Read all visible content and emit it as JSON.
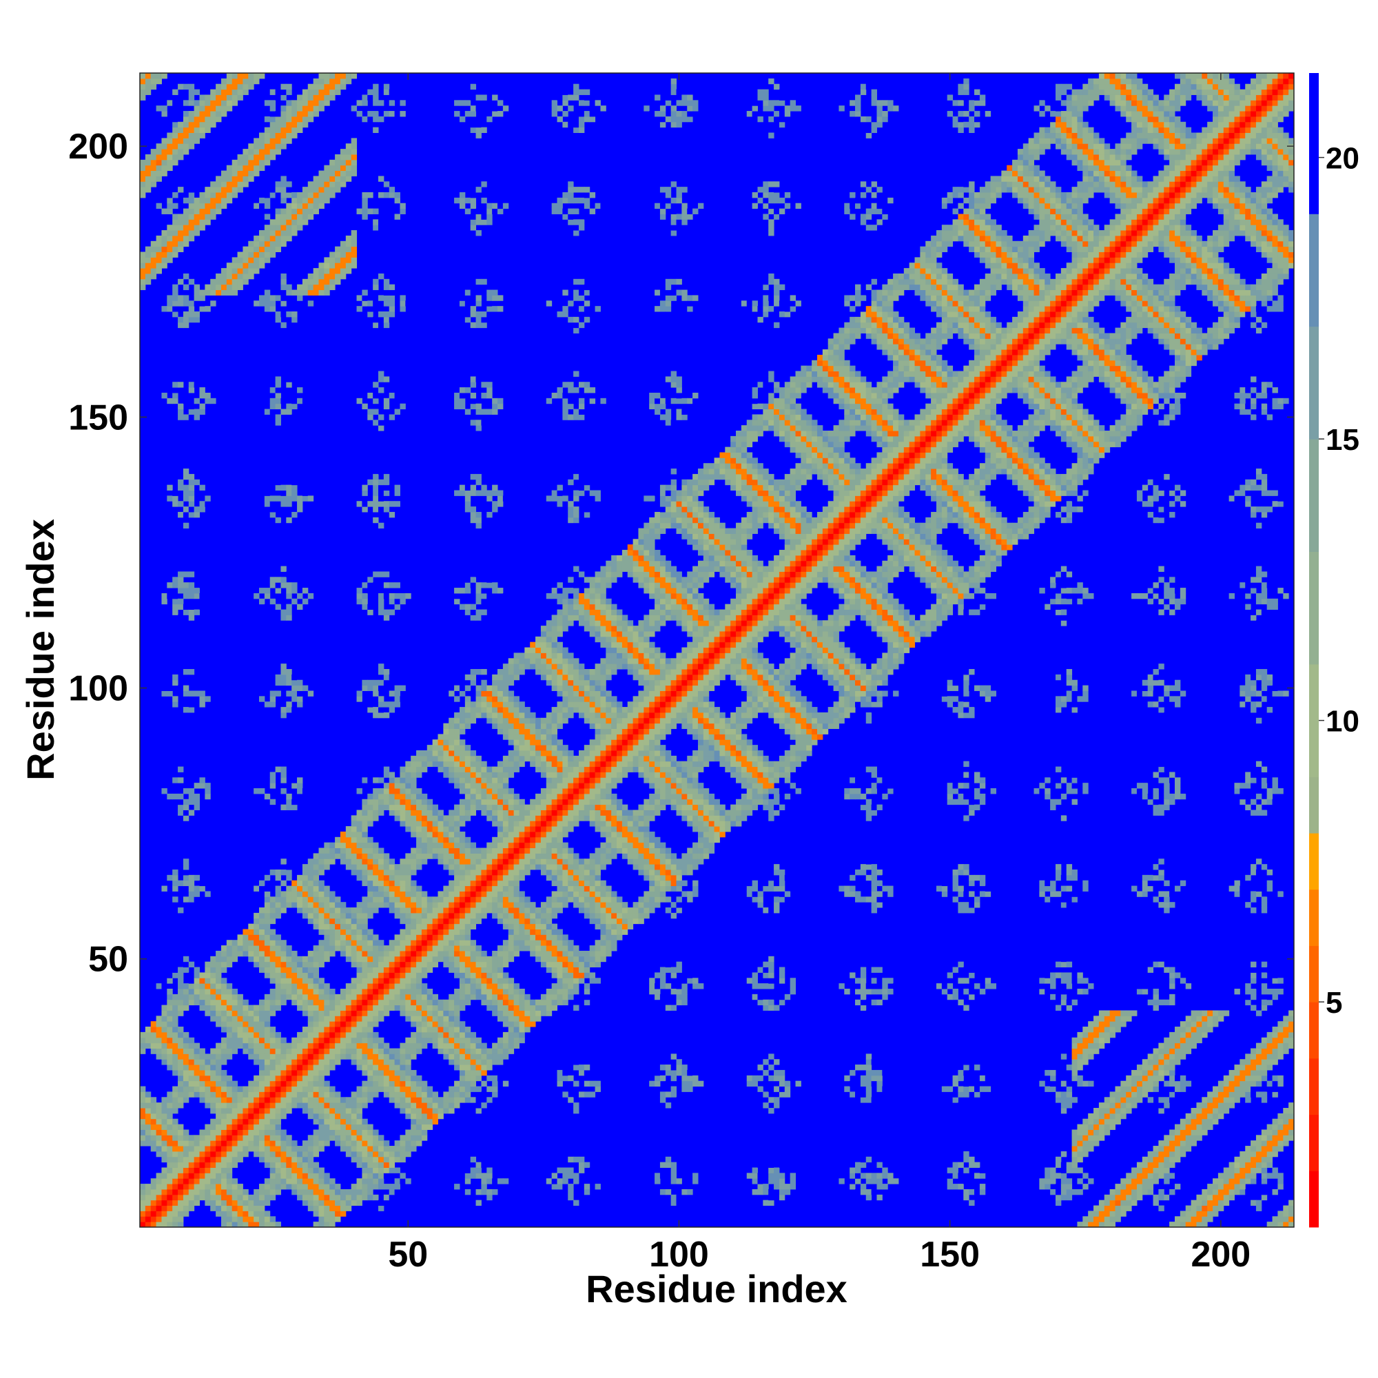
{
  "chart_data": {
    "type": "heatmap",
    "title": "",
    "xlabel": "Residue index",
    "ylabel": "Residue index",
    "xlim": [
      1,
      213
    ],
    "ylim": [
      1,
      213
    ],
    "x_ticks": [
      50,
      100,
      150,
      200
    ],
    "y_ticks": [
      50,
      100,
      150,
      200
    ],
    "colorbar": {
      "range": [
        1,
        21.5
      ],
      "ticks": [
        5,
        10,
        15,
        20
      ],
      "levels": [
        {
          "max": 2,
          "color": "#ff0000"
        },
        {
          "max": 3,
          "color": "#ff1a00"
        },
        {
          "max": 4,
          "color": "#ff3300"
        },
        {
          "max": 5,
          "color": "#ff4d00"
        },
        {
          "max": 6,
          "color": "#ff6600"
        },
        {
          "max": 7,
          "color": "#ff8000"
        },
        {
          "max": 8,
          "color": "#ffa500"
        },
        {
          "max": 9,
          "color": "#9db38a"
        },
        {
          "max": 11,
          "color": "#a2b98a"
        },
        {
          "max": 13,
          "color": "#93b091"
        },
        {
          "max": 15,
          "color": "#87a898"
        },
        {
          "max": 17,
          "color": "#7a9fa6"
        },
        {
          "max": 19,
          "color": "#6690b5"
        },
        {
          "max": 21.5,
          "color": "#0000ff"
        }
      ]
    },
    "description_of_values": "Residue-residue distance map; diagonal distance ~3.8, cross bands down to ~5",
    "diagonal_bands": [
      {
        "type": "anti",
        "x_start": 1,
        "y_start": 35,
        "length": 14,
        "color_value": 6
      },
      {
        "type": "anti",
        "x_start": 20,
        "y_start": 12,
        "length": 12,
        "color_value": 6
      },
      {
        "type": "anti",
        "x_start": 22,
        "y_start": 50,
        "length": 30,
        "color_value": 6
      },
      {
        "type": "anti",
        "x_start": 37,
        "y_start": 64,
        "length": 28,
        "color_value": 6
      },
      {
        "type": "anti",
        "x_start": 52,
        "y_start": 82,
        "length": 30,
        "color_value": 6
      },
      {
        "type": "anti",
        "x_start": 69,
        "y_start": 99,
        "length": 30,
        "color_value": 6
      },
      {
        "type": "anti",
        "x_start": 86,
        "y_start": 119,
        "length": 32,
        "color_value": 6
      },
      {
        "type": "anti",
        "x_start": 103,
        "y_start": 135,
        "length": 32,
        "color_value": 6
      },
      {
        "type": "anti",
        "x_start": 121,
        "y_start": 154,
        "length": 32,
        "color_value": 6
      },
      {
        "type": "anti",
        "x_start": 139,
        "y_start": 172,
        "length": 32,
        "color_value": 6
      },
      {
        "type": "anti",
        "x_start": 157,
        "y_start": 191,
        "length": 32,
        "color_value": 6
      },
      {
        "type": "anti",
        "x_start": 175,
        "y_start": 212,
        "length": 32,
        "color_value": 6
      },
      {
        "type": "anti",
        "x_start": 195,
        "y_start": 196,
        "length": 16,
        "color_value": 6
      },
      {
        "type": "anti",
        "x_start": 203,
        "y_start": 28,
        "length": 14,
        "color_value": 6
      },
      {
        "type": "anti",
        "x_start": 1,
        "y_start": 212,
        "length": 16,
        "color_value": 6
      }
    ]
  }
}
